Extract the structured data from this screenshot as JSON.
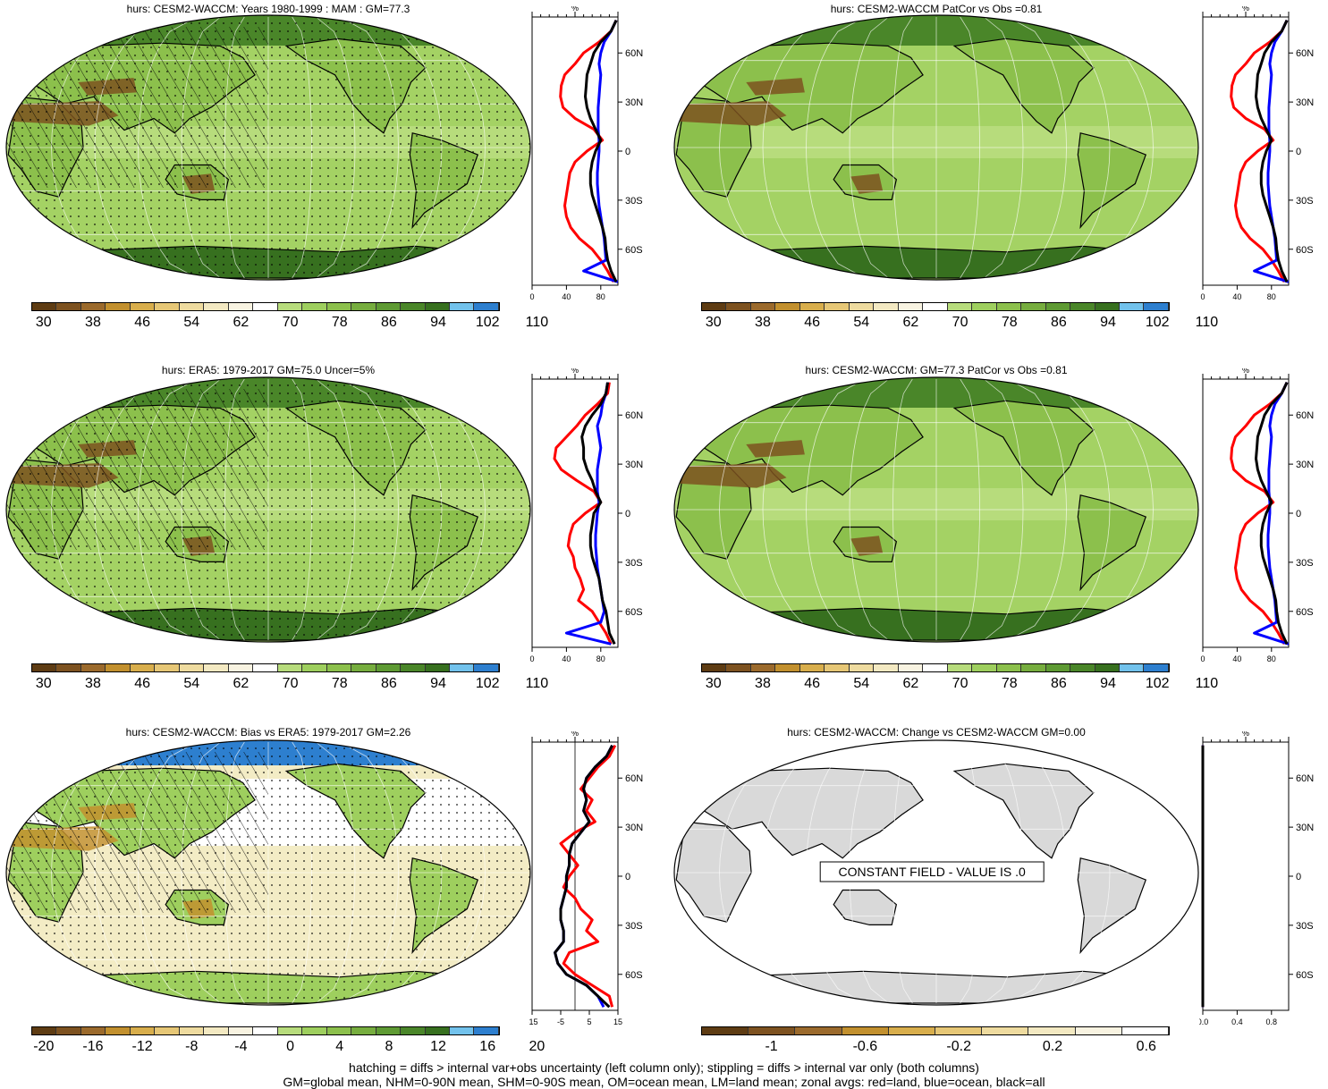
{
  "panels": [
    {
      "id": "model",
      "title": "hurs: CESM2-WACCM: Years 1980-1999 : MAM : GM=77.3",
      "hatch": true,
      "stipple": true,
      "scheme": "abs",
      "constant": false
    },
    {
      "id": "patcor",
      "title": "hurs: CESM2-WACCM PatCor vs Obs =0.81",
      "hatch": false,
      "stipple": false,
      "scheme": "abs",
      "constant": false
    },
    {
      "id": "era5",
      "title": "hurs: ERA5: 1979-2017 GM=75.0 Uncer=5%",
      "hatch": true,
      "stipple": true,
      "scheme": "abs",
      "constant": false
    },
    {
      "id": "model2",
      "title": "hurs: CESM2-WACCM: GM=77.3 PatCor vs Obs =0.81",
      "hatch": false,
      "stipple": false,
      "scheme": "abs",
      "constant": false
    },
    {
      "id": "bias",
      "title": "hurs: CESM2-WACCM: Bias vs ERA5: 1979-2017 GM=2.26",
      "hatch": true,
      "stipple": true,
      "scheme": "bias",
      "constant": false
    },
    {
      "id": "change",
      "title": "hurs: CESM2-WACCM: Change vs CESM2-WACCM GM=0.00",
      "hatch": false,
      "stipple": false,
      "scheme": "change",
      "constant": true,
      "constant_label": "CONSTANT FIELD - VALUE IS .0"
    }
  ],
  "colorbars": {
    "abs": {
      "colors": [
        "#5e3c13",
        "#7d5220",
        "#9b6a2c",
        "#c2902e",
        "#d8ae4c",
        "#e6c776",
        "#eedb9f",
        "#f3e9c2",
        "#f8f3e1",
        "#ffffff",
        "#b7dc7c",
        "#9ecf5e",
        "#8cc04c",
        "#76ad3e",
        "#5e9a33",
        "#4a8629",
        "#37701f",
        "#72c2ec",
        "#2d7fcf"
      ],
      "labels": [
        "30",
        "38",
        "46",
        "54",
        "62",
        "70",
        "78",
        "86",
        "94",
        "102",
        "110"
      ]
    },
    "bias": {
      "colors": [
        "#5e3c13",
        "#7d5220",
        "#9b6a2c",
        "#c2902e",
        "#d8ae4c",
        "#e6c776",
        "#eedb9f",
        "#f3e9c2",
        "#f8f3e1",
        "#ffffff",
        "#b7dc7c",
        "#9ecf5e",
        "#8cc04c",
        "#76ad3e",
        "#5e9a33",
        "#4a8629",
        "#37701f",
        "#72c2ec",
        "#2d7fcf"
      ],
      "labels": [
        "-20",
        "-16",
        "-12",
        "-8",
        "-4",
        "0",
        "4",
        "8",
        "12",
        "16",
        "20"
      ]
    },
    "change": {
      "colors": [
        "#5e3c13",
        "#7d5220",
        "#9b6a2c",
        "#c2902e",
        "#d8ae4c",
        "#e6c776",
        "#eedb9f",
        "#f3e9c2",
        "#f8f3e1",
        "#ffffff"
      ],
      "labels": [
        "-1",
        "-0.6",
        "-0.2",
        "0.2",
        "0.6"
      ]
    }
  },
  "chart_data": [
    {
      "type": "line",
      "panel": "model",
      "title": "%",
      "ylabels": [
        "60N",
        "30N",
        "0",
        "30S",
        "60S"
      ],
      "xlim": [
        0,
        100
      ],
      "xticks": [
        "0",
        "40",
        "80"
      ],
      "x": [
        75,
        72,
        68,
        62,
        40,
        32,
        28,
        30,
        38,
        55,
        75,
        80,
        72,
        62,
        50,
        45,
        38,
        35,
        42,
        48,
        55,
        65,
        72,
        80,
        85
      ],
      "series": [
        {
          "name": "land",
          "color": "#ff0000",
          "values": [
            98,
            92,
            78,
            60,
            50,
            38,
            34,
            33,
            36,
            50,
            72,
            82,
            64,
            50,
            44,
            42,
            40,
            38,
            40,
            45,
            55,
            70,
            80,
            88,
            95
          ]
        },
        {
          "name": "ocean",
          "color": "#0000ff",
          "values": [
            98,
            92,
            84,
            80,
            78,
            80,
            79,
            78,
            77,
            77,
            77,
            78,
            78,
            77,
            76,
            76,
            77,
            78,
            80,
            82,
            84,
            85,
            86,
            60,
            100
          ]
        },
        {
          "name": "all",
          "color": "#000000",
          "values": [
            98,
            92,
            80,
            72,
            68,
            64,
            63,
            62,
            64,
            68,
            74,
            80,
            74,
            70,
            68,
            68,
            70,
            74,
            78,
            82,
            85,
            86,
            88,
            92,
            98
          ]
        }
      ]
    },
    {
      "type": "line",
      "panel": "patcor",
      "title": "%",
      "ylabels": [
        "60N",
        "30N",
        "0",
        "30S",
        "60S"
      ],
      "xlim": [
        0,
        100
      ],
      "xticks": [
        "0",
        "40",
        "80"
      ],
      "series": [
        {
          "name": "land",
          "color": "#ff0000",
          "values": [
            98,
            92,
            78,
            60,
            50,
            38,
            34,
            33,
            36,
            50,
            72,
            82,
            64,
            50,
            44,
            42,
            40,
            38,
            40,
            45,
            55,
            70,
            80,
            88,
            95
          ]
        },
        {
          "name": "ocean",
          "color": "#0000ff",
          "values": [
            98,
            92,
            84,
            80,
            78,
            80,
            79,
            78,
            77,
            77,
            77,
            78,
            78,
            77,
            76,
            76,
            77,
            78,
            80,
            82,
            84,
            85,
            86,
            60,
            100
          ]
        },
        {
          "name": "all",
          "color": "#000000",
          "values": [
            98,
            92,
            80,
            72,
            68,
            64,
            63,
            62,
            64,
            68,
            74,
            80,
            74,
            70,
            68,
            68,
            70,
            74,
            78,
            82,
            85,
            86,
            88,
            92,
            98
          ]
        }
      ]
    },
    {
      "type": "line",
      "panel": "era5",
      "title": "%",
      "ylabels": [
        "60N",
        "30N",
        "0",
        "30S",
        "60S"
      ],
      "xlim": [
        0,
        100
      ],
      "xticks": [
        "0",
        "40",
        "80"
      ],
      "series": [
        {
          "name": "land",
          "color": "#ff0000",
          "values": [
            90,
            88,
            76,
            62,
            52,
            40,
            28,
            26,
            34,
            52,
            72,
            80,
            62,
            48,
            44,
            42,
            48,
            50,
            56,
            60,
            54,
            70,
            78,
            86,
            92
          ]
        },
        {
          "name": "ocean",
          "color": "#0000ff",
          "values": [
            88,
            86,
            82,
            80,
            76,
            78,
            80,
            78,
            76,
            76,
            76,
            78,
            76,
            75,
            74,
            74,
            75,
            76,
            78,
            80,
            82,
            84,
            80,
            40,
            92
          ]
        },
        {
          "name": "all",
          "color": "#000000",
          "values": [
            88,
            86,
            80,
            70,
            62,
            58,
            60,
            60,
            64,
            70,
            74,
            80,
            72,
            70,
            68,
            68,
            70,
            74,
            78,
            80,
            82,
            86,
            88,
            90,
            96
          ]
        }
      ]
    },
    {
      "type": "line",
      "panel": "model2",
      "title": "%",
      "ylabels": [
        "60N",
        "30N",
        "0",
        "30S",
        "60S"
      ],
      "xlim": [
        0,
        100
      ],
      "xticks": [
        "0",
        "40",
        "80"
      ],
      "series": [
        {
          "name": "land",
          "color": "#ff0000",
          "values": [
            98,
            92,
            78,
            60,
            50,
            38,
            34,
            33,
            36,
            50,
            72,
            82,
            64,
            50,
            44,
            42,
            40,
            38,
            40,
            45,
            55,
            70,
            80,
            88,
            95
          ]
        },
        {
          "name": "ocean",
          "color": "#0000ff",
          "values": [
            98,
            92,
            84,
            80,
            78,
            80,
            79,
            78,
            77,
            77,
            77,
            78,
            78,
            77,
            76,
            76,
            77,
            78,
            80,
            82,
            84,
            85,
            86,
            60,
            100
          ]
        },
        {
          "name": "all",
          "color": "#000000",
          "values": [
            98,
            92,
            80,
            72,
            68,
            64,
            63,
            62,
            64,
            68,
            74,
            80,
            74,
            70,
            68,
            68,
            70,
            74,
            78,
            82,
            85,
            86,
            88,
            92,
            98
          ]
        }
      ]
    },
    {
      "type": "line",
      "panel": "bias",
      "title": "%",
      "ylabels": [
        "60N",
        "30N",
        "0",
        "30S",
        "60S"
      ],
      "xlim": [
        -15,
        15
      ],
      "xticks": [
        "-15",
        "-5",
        "5",
        "15"
      ],
      "series": [
        {
          "name": "land",
          "color": "#ff0000",
          "values": [
            14,
            12,
            8,
            5,
            2,
            6,
            4,
            7,
            0,
            -5,
            -2,
            1,
            -2,
            -4,
            0,
            2,
            6,
            4,
            8,
            -2,
            -4,
            0,
            6,
            12,
            13
          ]
        },
        {
          "name": "ocean",
          "color": "#0000ff",
          "values": [
            13,
            11,
            7,
            4,
            3,
            4,
            3,
            5,
            2,
            -1,
            -2,
            -2,
            -3,
            -3,
            -4,
            -5,
            -5,
            -4,
            -4,
            -7,
            -6,
            -3,
            4,
            8,
            10
          ]
        },
        {
          "name": "all",
          "color": "#000000",
          "values": [
            13,
            11,
            7,
            4,
            3,
            4,
            3,
            5,
            2,
            -1,
            -2,
            -2,
            -3,
            -3,
            -4,
            -5,
            -5,
            -4,
            -4,
            -7,
            -6,
            -3,
            4,
            8,
            12
          ]
        }
      ]
    },
    {
      "type": "line",
      "panel": "change",
      "title": "%",
      "ylabels": [
        "60N",
        "30N",
        "0",
        "30S",
        "60S"
      ],
      "xlim": [
        0,
        1
      ],
      "xticks": [
        "0.0",
        "0.4",
        "0.8"
      ],
      "series": [
        {
          "name": "land",
          "color": "#ff0000",
          "values": [
            0,
            0,
            0,
            0,
            0,
            0,
            0,
            0,
            0,
            0,
            0,
            0,
            0,
            0,
            0,
            0,
            0,
            0,
            0,
            0,
            0,
            0,
            0,
            0,
            0
          ]
        },
        {
          "name": "ocean",
          "color": "#0000ff",
          "values": [
            0,
            0,
            0,
            0,
            0,
            0,
            0,
            0,
            0,
            0,
            0,
            0,
            0,
            0,
            0,
            0,
            0,
            0,
            0,
            0,
            0,
            0,
            0,
            0,
            0
          ]
        },
        {
          "name": "all",
          "color": "#000000",
          "values": [
            0,
            0,
            0,
            0,
            0,
            0,
            0,
            0,
            0,
            0,
            0,
            0,
            0,
            0,
            0,
            0,
            0,
            0,
            0,
            0,
            0,
            0,
            0,
            0,
            0
          ]
        }
      ]
    }
  ],
  "footer": {
    "line1": "hatching = diffs > internal var+obs uncertainty (left column only); stippling = diffs > internal var only (both columns)",
    "line2": "GM=global mean, NHM=0-90N mean, SHM=0-90S mean, OM=ocean mean, LM=land mean; zonal avgs: red=land, blue=ocean, black=all"
  }
}
